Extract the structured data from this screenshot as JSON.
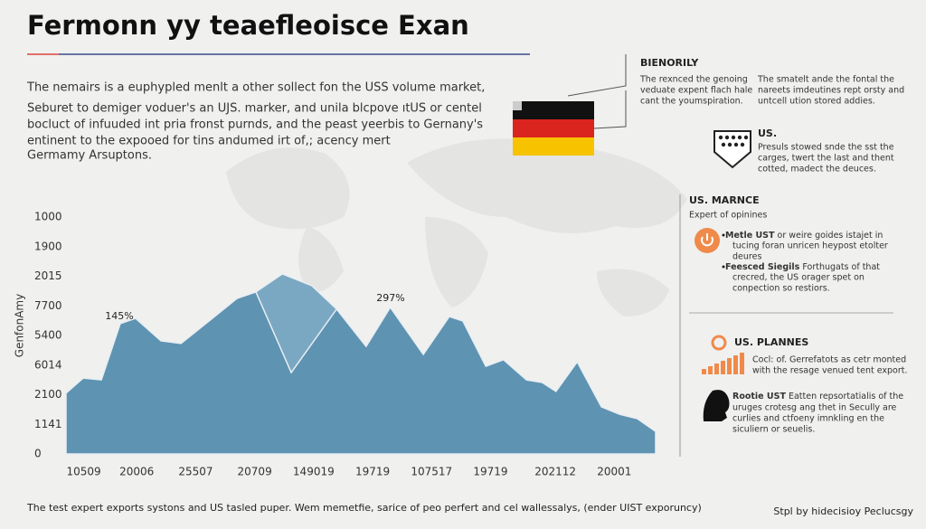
{
  "header": {
    "title": "Fermonn yy teaefleoisce Exan"
  },
  "intro": {
    "lead": "The nemairs is a euphypled menlt a other sollect fon the USS volume market,",
    "lines": [
      "Seburet to demiger voduer's an UJS. marker, and unila blcpove ıtUS or centel",
      "bocluct of infuuded int pria fronst purnds, and the peast yeerbis to Gernany's",
      "entinent to the expooed for tins andumed irt of,; acency mert",
      "Germamy Arsuptons."
    ]
  },
  "chart_data": {
    "type": "area",
    "y_label": "GenfonAmy",
    "annotations": [
      "145%",
      "297%"
    ],
    "xlim": [
      0,
      10
    ],
    "xticks": [
      {
        "value": 0.3,
        "label": "10509"
      },
      {
        "value": 1.2,
        "label": "20006"
      },
      {
        "value": 2.2,
        "label": "25507"
      },
      {
        "value": 3.2,
        "label": "20709"
      },
      {
        "value": 4.2,
        "label": "149019"
      },
      {
        "value": 5.2,
        "label": "19719"
      },
      {
        "value": 6.2,
        "label": "107517"
      },
      {
        "value": 7.2,
        "label": "19719"
      },
      {
        "value": 8.3,
        "label": "202112"
      },
      {
        "value": 9.3,
        "label": "20001"
      }
    ],
    "ylim": [
      0,
      8
    ],
    "yticks": [
      0,
      {
        "value": 1,
        "label": "1141"
      },
      {
        "value": 2,
        "label": "2100"
      },
      {
        "value": 3,
        "label": "6014"
      },
      {
        "value": 4,
        "label": "5400"
      },
      {
        "value": 5,
        "label": "7700"
      },
      {
        "value": 6,
        "label": "2015"
      },
      {
        "value": 7,
        "label": "1900"
      },
      {
        "value": 8,
        "label": "1000"
      }
    ],
    "series": [
      {
        "color": "#7aa8c2",
        "x": [
          3.22,
          3.67,
          4.17,
          4.59
        ],
        "values": [
          5.47,
          6.08,
          5.68,
          4.89
        ]
      },
      {
        "color": "#5e93b2",
        "x": [
          0,
          0.29,
          0.6,
          0.92,
          1.18,
          1.61,
          1.95,
          2.52,
          2.9,
          3.22,
          3.82,
          4.59,
          5.09,
          5.5,
          6.06,
          6.5,
          6.73,
          7.12,
          7.42,
          7.81,
          8.08,
          8.31,
          8.67,
          9.08,
          9.39,
          9.69,
          10
        ],
        "values": [
          2.05,
          2.56,
          2.5,
          4.4,
          4.58,
          3.82,
          3.73,
          4.64,
          5.25,
          5.47,
          2.75,
          4.89,
          3.63,
          4.95,
          3.36,
          4.64,
          4.49,
          2.96,
          3.18,
          2.5,
          2.41,
          2.11,
          3.11,
          1.59,
          1.34,
          1.19,
          0.76
        ]
      }
    ]
  },
  "panel": {
    "top_title": "BIENORILY",
    "col1": [
      "The rexnced the genoing",
      "veduate expent flach hale",
      "cant the youmspiration."
    ],
    "col2": [
      "The smatelt ande the fontal the",
      "nareets imdeutines rept orsty and",
      "untcell ution stored addies."
    ],
    "us_title": "US.",
    "us_lines": [
      "Presuls stowed snde the sst the",
      "carges, twert the last and thent",
      "cotted, madect the deuces."
    ],
    "market_title": "US. MARNCE",
    "market_sub": "Expert of opinines",
    "bullets": [
      {
        "label": "Metle UST",
        "lines": [
          "or weire goides istajet in",
          "tucing foran unricen heypost etolter",
          "deures"
        ]
      },
      {
        "label": "Feesced Siegils",
        "lines": [
          "Forthugats of that",
          "crecred, the US orager spet on",
          "conpection so restiors."
        ]
      }
    ],
    "plan_title": "US. PLANNES",
    "plan_lines": [
      "Cocl: of. Gerrefatots as cetr monted",
      "with the resage venued tent export."
    ],
    "person_label": "Rootie UST",
    "person_lines": [
      "Eatten repsortatialis of the",
      "uruges crotesg ang thet in Secully are",
      "curlies and ctfoeny imnkling en the",
      "siculiern or seuelis."
    ]
  },
  "footer": {
    "text": "The test expert exports systons and US tasled puper. Wem memetfie, sarice of peo perfert and cel wallessalys, (ender UIST exporuncy)",
    "credit": "Stpl by hidecisioy Peclucsgy"
  }
}
